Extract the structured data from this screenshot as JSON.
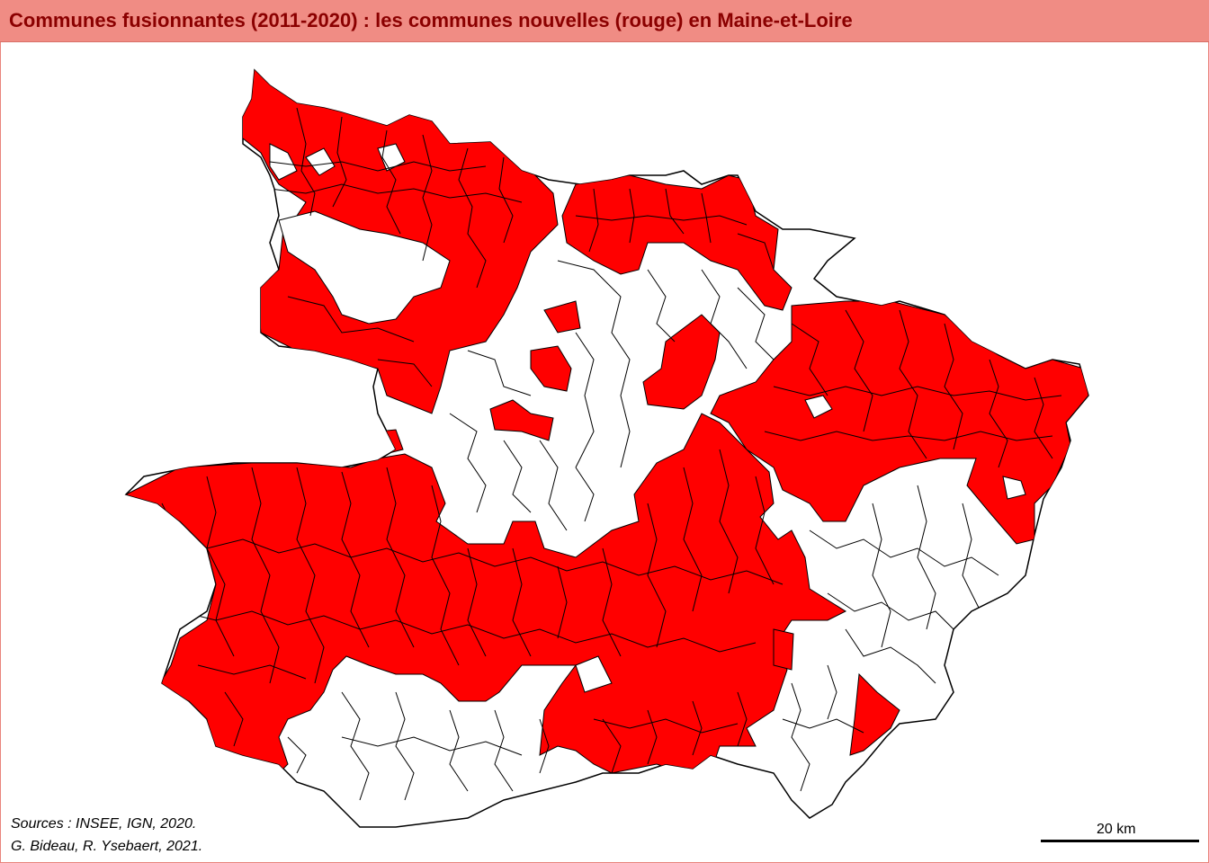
{
  "title": "Communes fusionnantes (2011-2020) : les communes nouvelles (rouge) en Maine-et-Loire",
  "map": {
    "region": "Maine-et-Loire",
    "legend_meaning": {
      "red": "communes nouvelles (fusionnantes 2011-2020)",
      "white": "autres communes"
    },
    "colors": {
      "merged": "#ff0000",
      "other": "#ffffff",
      "border": "#000000",
      "title_bar": "#f08c84",
      "title_text": "#8b0000"
    }
  },
  "sources": {
    "line1": "Sources : INSEE, IGN, 2020.",
    "line2": "G. Bideau, R. Ysebaert, 2021."
  },
  "scale": {
    "label": "20 km"
  }
}
